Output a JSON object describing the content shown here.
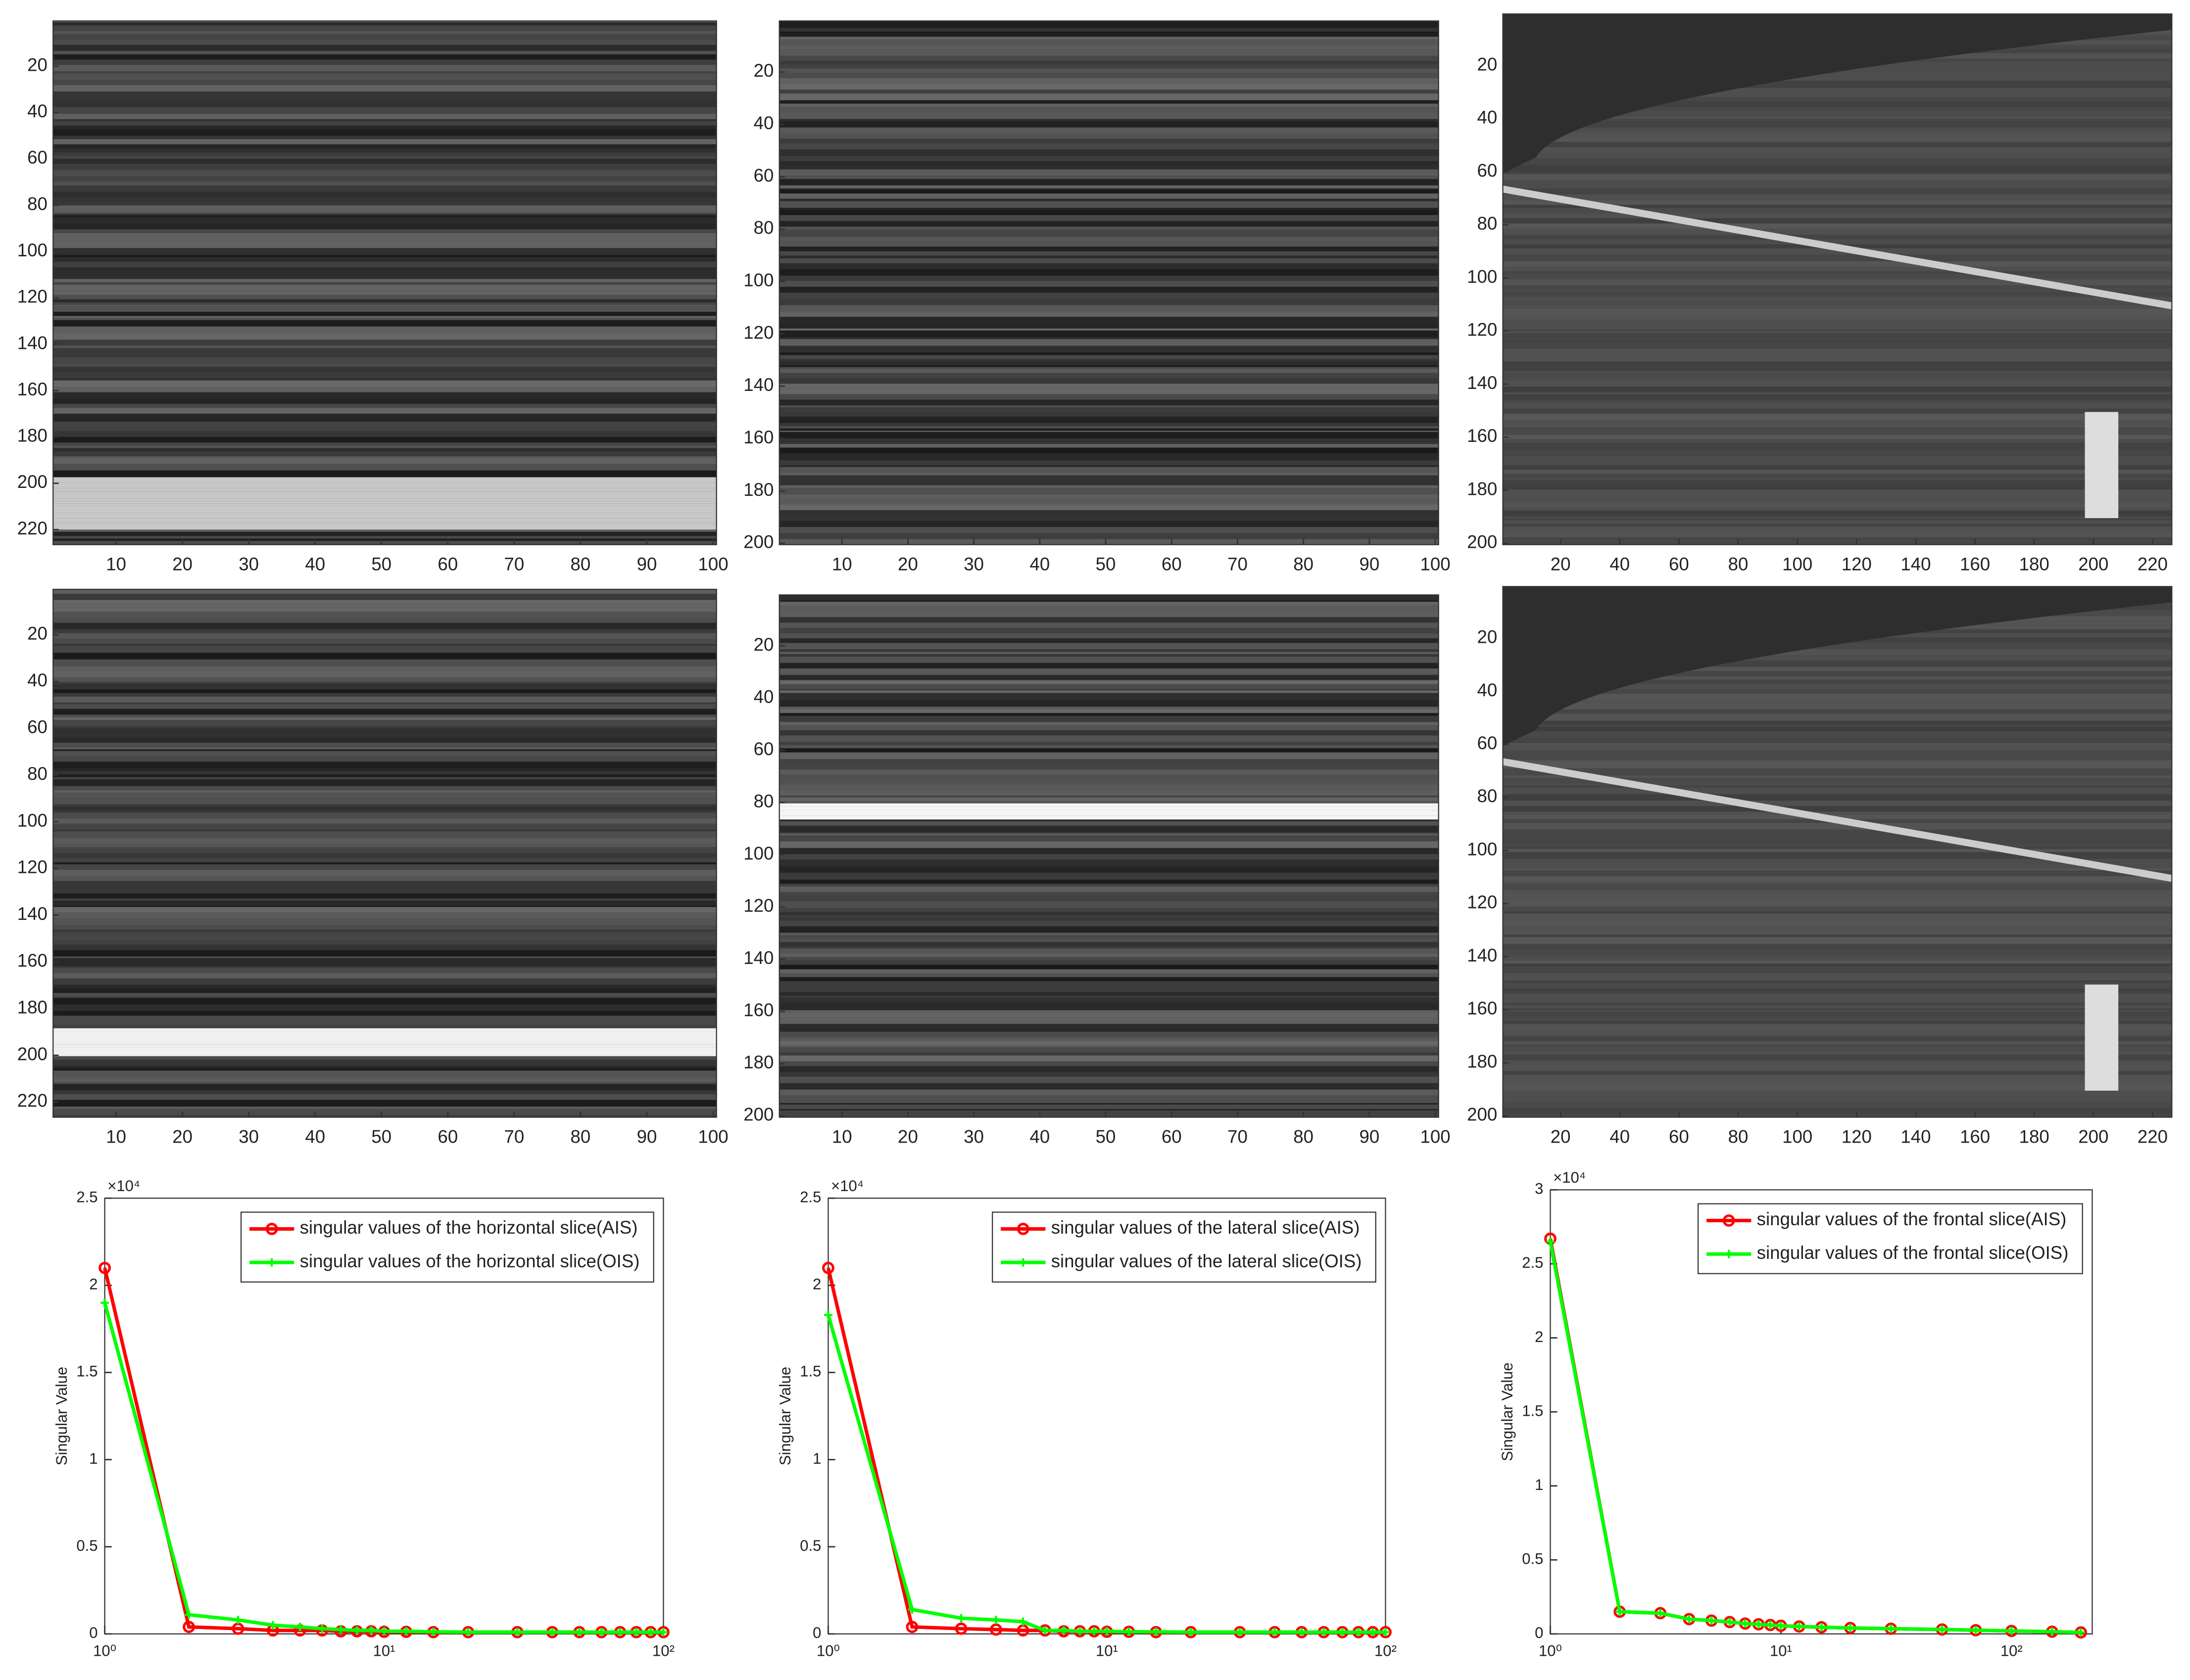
{
  "chart_data": [
    {
      "type": "image",
      "xlim": [
        0.5,
        100.5
      ],
      "ylim": [
        0.5,
        226.5
      ],
      "xticks": [
        10,
        20,
        30,
        40,
        50,
        60,
        70,
        80,
        90,
        100
      ],
      "yticks": [
        20,
        40,
        60,
        80,
        100,
        120,
        140,
        160,
        180,
        200,
        220
      ]
    },
    {
      "type": "image",
      "xlim": [
        0.5,
        100.5
      ],
      "ylim": [
        0.5,
        200.5
      ],
      "xticks": [
        10,
        20,
        30,
        40,
        50,
        60,
        70,
        80,
        90,
        100
      ],
      "yticks": [
        20,
        40,
        60,
        80,
        100,
        120,
        140,
        160,
        180,
        200
      ]
    },
    {
      "type": "image",
      "xlim": [
        0.5,
        226.5
      ],
      "ylim": [
        0.5,
        200.5
      ],
      "xticks": [
        20,
        40,
        60,
        80,
        100,
        120,
        140,
        160,
        180,
        200,
        220
      ],
      "yticks": [
        20,
        40,
        60,
        80,
        100,
        120,
        140,
        160,
        180,
        200
      ]
    },
    {
      "type": "image",
      "xlim": [
        0.5,
        100.5
      ],
      "ylim": [
        0.5,
        226.5
      ],
      "xticks": [
        10,
        20,
        30,
        40,
        50,
        60,
        70,
        80,
        90,
        100
      ],
      "yticks": [
        20,
        40,
        60,
        80,
        100,
        120,
        140,
        160,
        180,
        200,
        220
      ]
    },
    {
      "type": "image",
      "xlim": [
        0.5,
        100.5
      ],
      "ylim": [
        0.5,
        200.5
      ],
      "xticks": [
        10,
        20,
        30,
        40,
        50,
        60,
        70,
        80,
        90,
        100
      ],
      "yticks": [
        20,
        40,
        60,
        80,
        100,
        120,
        140,
        160,
        180,
        200
      ]
    },
    {
      "type": "image",
      "xlim": [
        0.5,
        226.5
      ],
      "ylim": [
        0.5,
        200.5
      ],
      "xticks": [
        20,
        40,
        60,
        80,
        100,
        120,
        140,
        160,
        180,
        200,
        220
      ],
      "yticks": [
        20,
        40,
        60,
        80,
        100,
        120,
        140,
        160,
        180,
        200
      ]
    },
    {
      "type": "line",
      "ylabel": "Singular Value",
      "y_multiplier": "×10⁴",
      "log_x": true,
      "legend": "top",
      "xlim": [
        1,
        100
      ],
      "ylim": [
        0,
        2.5
      ],
      "xticks": [
        {
          "value": 1,
          "label": "10⁰"
        },
        {
          "value": 10,
          "label": "10¹"
        },
        {
          "value": 100,
          "label": "10²"
        }
      ],
      "yticks": [
        0,
        0.5,
        1,
        1.5,
        2,
        2.5
      ],
      "x": [
        1,
        2,
        3,
        4,
        5,
        6,
        7,
        8,
        9,
        10,
        12,
        15,
        20,
        30,
        40,
        50,
        60,
        70,
        80,
        90,
        100
      ],
      "series": [
        {
          "name": "singular values of the horizontal slice(AIS)",
          "color": "#ff0000",
          "values": [
            2.1,
            0.04,
            0.03,
            0.02,
            0.02,
            0.02,
            0.015,
            0.015,
            0.015,
            0.012,
            0.012,
            0.01,
            0.01,
            0.01,
            0.01,
            0.01,
            0.01,
            0.01,
            0.01,
            0.01,
            0.01
          ]
        },
        {
          "name": "singular values of the horizontal slice(OIS)",
          "color": "#00ff00",
          "values": [
            1.9,
            0.11,
            0.08,
            0.05,
            0.04,
            0.03,
            0.025,
            0.02,
            0.02,
            0.015,
            0.015,
            0.012,
            0.01,
            0.01,
            0.01,
            0.01,
            0.01,
            0.01,
            0.01,
            0.01,
            0.01
          ]
        }
      ]
    },
    {
      "type": "line",
      "ylabel": "Singular Value",
      "y_multiplier": "×10⁴",
      "log_x": true,
      "legend": "top",
      "xlim": [
        1,
        100
      ],
      "ylim": [
        0,
        2.5
      ],
      "xticks": [
        {
          "value": 1,
          "label": "10⁰"
        },
        {
          "value": 10,
          "label": "10¹"
        },
        {
          "value": 100,
          "label": "10²"
        }
      ],
      "yticks": [
        0,
        0.5,
        1,
        1.5,
        2,
        2.5
      ],
      "x": [
        1,
        2,
        3,
        4,
        5,
        6,
        7,
        8,
        9,
        10,
        12,
        15,
        20,
        30,
        40,
        50,
        60,
        70,
        80,
        90,
        100
      ],
      "series": [
        {
          "name": "singular values of the lateral slice(AIS)",
          "color": "#ff0000",
          "values": [
            2.1,
            0.04,
            0.03,
            0.025,
            0.02,
            0.02,
            0.015,
            0.015,
            0.015,
            0.012,
            0.012,
            0.01,
            0.01,
            0.01,
            0.01,
            0.01,
            0.01,
            0.01,
            0.01,
            0.01,
            0.01
          ]
        },
        {
          "name": "singular values of the lateral slice(OIS)",
          "color": "#00ff00",
          "values": [
            1.83,
            0.14,
            0.09,
            0.08,
            0.07,
            0.02,
            0.02,
            0.015,
            0.015,
            0.015,
            0.012,
            0.012,
            0.01,
            0.01,
            0.01,
            0.01,
            0.01,
            0.01,
            0.01,
            0.01,
            0.01
          ]
        }
      ]
    },
    {
      "type": "line",
      "ylabel": "Singular Value",
      "y_multiplier": "×10⁴",
      "log_x": true,
      "legend": "top",
      "xlim": [
        1,
        224
      ],
      "ylim": [
        0,
        3
      ],
      "xticks": [
        {
          "value": 1,
          "label": "10⁰"
        },
        {
          "value": 10,
          "label": "10¹"
        },
        {
          "value": 100,
          "label": "10²"
        }
      ],
      "yticks": [
        0,
        0.5,
        1,
        1.5,
        2,
        2.5,
        3
      ],
      "x": [
        1,
        2,
        3,
        4,
        5,
        6,
        7,
        8,
        9,
        10,
        12,
        15,
        20,
        30,
        50,
        70,
        100,
        150,
        200
      ],
      "series": [
        {
          "name": "singular values of the frontal slice(AIS)",
          "color": "#ff0000",
          "values": [
            2.67,
            0.15,
            0.14,
            0.1,
            0.09,
            0.08,
            0.07,
            0.065,
            0.06,
            0.055,
            0.05,
            0.045,
            0.04,
            0.035,
            0.03,
            0.025,
            0.02,
            0.015,
            0.01
          ]
        },
        {
          "name": "singular values of the frontal slice(OIS)",
          "color": "#00ff00",
          "values": [
            2.65,
            0.15,
            0.14,
            0.1,
            0.09,
            0.08,
            0.07,
            0.065,
            0.06,
            0.055,
            0.05,
            0.045,
            0.04,
            0.035,
            0.03,
            0.025,
            0.02,
            0.015,
            0.01
          ]
        }
      ]
    }
  ]
}
